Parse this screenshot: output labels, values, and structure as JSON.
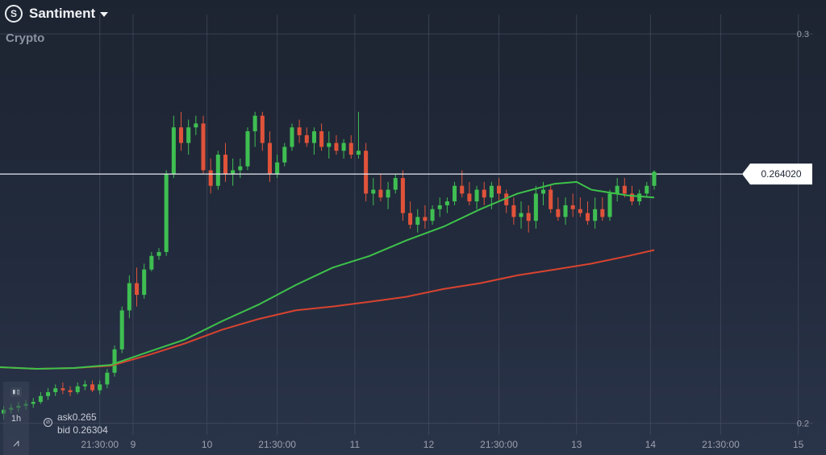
{
  "header": {
    "asset_name": "Santiment",
    "category": "Crypto",
    "logo_letter": "S"
  },
  "side_tools": {
    "chart_icon": "candles-icon",
    "timeframe": "1h",
    "draw_icon": "draw-icon"
  },
  "quote": {
    "ask_label": "ask",
    "ask_value": "0.265",
    "bid_label": "bid",
    "bid_value": "0.26304"
  },
  "colors": {
    "bull": "#3fbf52",
    "bear": "#e0533a",
    "ma_fast": "#3ec24a",
    "ma_slow": "#d9432f",
    "grid": "#4a5365"
  },
  "chart_data": {
    "type": "candlestick",
    "y_ticks": [
      "0.3",
      "0.2"
    ],
    "y_tick_values": [
      0.3,
      0.2
    ],
    "x_ticks": [
      "21:30:00",
      "9",
      "10",
      "21:30:00",
      "11",
      "12",
      "21:30:00",
      "13",
      "14",
      "21:30:00",
      "15"
    ],
    "x_tick_times": [
      3.5,
      8.0,
      18.0,
      27.5,
      38.0,
      48.0,
      57.5,
      68.0,
      78.0,
      87.5,
      98.0
    ],
    "current_price": "0.264020",
    "current_price_value": 0.26402,
    "x_range": [
      -10.0,
      100.0
    ],
    "y_range": [
      0.196,
      0.305
    ],
    "candle_times": [
      -9.5,
      -8.5,
      -7.5,
      -6.5,
      -5.5,
      -4.5,
      -3.5,
      -2.5,
      -1.5,
      -0.5,
      0.5,
      1.5,
      2.5,
      3.5,
      4.5,
      5.5,
      6.5,
      7.5,
      8.5,
      9.5,
      10.5,
      11.5,
      12.5,
      13.5,
      14.5,
      15.5,
      16.5,
      17.5,
      18.5,
      19.5,
      20.5,
      21.5,
      22.5,
      23.5,
      24.5,
      25.5,
      26.5,
      27.5,
      28.5,
      29.5,
      30.5,
      31.5,
      32.5,
      33.5,
      34.5,
      35.5,
      36.5,
      37.5,
      38.5,
      39.5,
      40.5,
      41.5,
      42.5,
      43.5,
      44.5,
      45.5,
      46.5,
      47.5,
      48.5,
      49.5,
      50.5,
      51.5,
      52.5,
      53.5,
      54.5,
      55.5,
      56.5,
      57.5,
      58.5,
      59.5,
      60.5,
      61.5,
      62.5,
      63.5,
      64.5,
      65.5,
      66.5,
      67.5,
      68.5,
      69.5,
      70.5,
      71.5,
      72.5,
      73.5,
      74.5,
      75.5,
      76.5,
      77.5,
      78.5
    ],
    "candles": [
      [
        0.2025,
        0.2045,
        0.201,
        0.2035
      ],
      [
        0.2035,
        0.205,
        0.2025,
        0.204
      ],
      [
        0.204,
        0.2055,
        0.203,
        0.2045
      ],
      [
        0.2045,
        0.206,
        0.2035,
        0.205
      ],
      [
        0.205,
        0.2065,
        0.204,
        0.2055
      ],
      [
        0.2055,
        0.208,
        0.205,
        0.207
      ],
      [
        0.207,
        0.209,
        0.206,
        0.208
      ],
      [
        0.208,
        0.21,
        0.207,
        0.209
      ],
      [
        0.209,
        0.2105,
        0.2075,
        0.2085
      ],
      [
        0.2085,
        0.2095,
        0.207,
        0.208
      ],
      [
        0.208,
        0.2105,
        0.2075,
        0.2095
      ],
      [
        0.2095,
        0.211,
        0.2085,
        0.21
      ],
      [
        0.21,
        0.211,
        0.208,
        0.2085
      ],
      [
        0.2085,
        0.211,
        0.2075,
        0.21
      ],
      [
        0.21,
        0.214,
        0.209,
        0.213
      ],
      [
        0.213,
        0.22,
        0.212,
        0.219
      ],
      [
        0.219,
        0.23,
        0.218,
        0.229
      ],
      [
        0.229,
        0.238,
        0.227,
        0.236
      ],
      [
        0.236,
        0.24,
        0.23,
        0.233
      ],
      [
        0.233,
        0.241,
        0.232,
        0.2395
      ],
      [
        0.2395,
        0.244,
        0.239,
        0.243
      ],
      [
        0.243,
        0.245,
        0.242,
        0.244
      ],
      [
        0.244,
        0.265,
        0.243,
        0.264
      ],
      [
        0.264,
        0.279,
        0.263,
        0.276
      ],
      [
        0.276,
        0.28,
        0.27,
        0.272
      ],
      [
        0.272,
        0.278,
        0.269,
        0.276
      ],
      [
        0.276,
        0.279,
        0.274,
        0.277
      ],
      [
        0.277,
        0.279,
        0.264,
        0.265
      ],
      [
        0.265,
        0.268,
        0.259,
        0.261
      ],
      [
        0.261,
        0.27,
        0.26,
        0.269
      ],
      [
        0.269,
        0.272,
        0.262,
        0.264
      ],
      [
        0.264,
        0.268,
        0.261,
        0.265
      ],
      [
        0.265,
        0.268,
        0.263,
        0.266
      ],
      [
        0.266,
        0.276,
        0.265,
        0.275
      ],
      [
        0.275,
        0.28,
        0.271,
        0.279
      ],
      [
        0.279,
        0.28,
        0.27,
        0.272
      ],
      [
        0.272,
        0.275,
        0.262,
        0.264
      ],
      [
        0.264,
        0.269,
        0.263,
        0.267
      ],
      [
        0.267,
        0.272,
        0.266,
        0.271
      ],
      [
        0.271,
        0.277,
        0.27,
        0.276
      ],
      [
        0.276,
        0.278,
        0.272,
        0.274
      ],
      [
        0.274,
        0.276,
        0.271,
        0.272
      ],
      [
        0.272,
        0.276,
        0.269,
        0.275
      ],
      [
        0.275,
        0.277,
        0.27,
        0.271
      ],
      [
        0.271,
        0.275,
        0.268,
        0.272
      ],
      [
        0.272,
        0.274,
        0.269,
        0.27
      ],
      [
        0.27,
        0.273,
        0.268,
        0.272
      ],
      [
        0.272,
        0.274,
        0.268,
        0.269
      ],
      [
        0.269,
        0.28,
        0.268,
        0.27
      ],
      [
        0.27,
        0.272,
        0.257,
        0.259
      ],
      [
        0.259,
        0.263,
        0.256,
        0.26
      ],
      [
        0.26,
        0.264,
        0.257,
        0.258
      ],
      [
        0.258,
        0.262,
        0.255,
        0.26
      ],
      [
        0.26,
        0.264,
        0.259,
        0.263
      ],
      [
        0.263,
        0.265,
        0.252,
        0.254
      ],
      [
        0.254,
        0.257,
        0.25,
        0.251
      ],
      [
        0.251,
        0.255,
        0.249,
        0.253
      ],
      [
        0.253,
        0.256,
        0.25,
        0.252
      ],
      [
        0.252,
        0.256,
        0.251,
        0.255
      ],
      [
        0.255,
        0.258,
        0.253,
        0.256
      ],
      [
        0.256,
        0.258,
        0.254,
        0.257
      ],
      [
        0.257,
        0.262,
        0.256,
        0.261
      ],
      [
        0.261,
        0.265,
        0.258,
        0.259
      ],
      [
        0.259,
        0.262,
        0.256,
        0.257
      ],
      [
        0.257,
        0.261,
        0.255,
        0.26
      ],
      [
        0.26,
        0.262,
        0.256,
        0.258
      ],
      [
        0.258,
        0.262,
        0.255,
        0.261
      ],
      [
        0.261,
        0.263,
        0.257,
        0.259
      ],
      [
        0.259,
        0.26,
        0.254,
        0.256
      ],
      [
        0.256,
        0.258,
        0.251,
        0.253
      ],
      [
        0.253,
        0.257,
        0.25,
        0.254
      ],
      [
        0.254,
        0.256,
        0.249,
        0.252
      ],
      [
        0.252,
        0.261,
        0.25,
        0.259
      ],
      [
        0.259,
        0.262,
        0.256,
        0.26
      ],
      [
        0.26,
        0.261,
        0.254,
        0.255
      ],
      [
        0.255,
        0.258,
        0.252,
        0.253
      ],
      [
        0.253,
        0.258,
        0.251,
        0.256
      ],
      [
        0.256,
        0.259,
        0.253,
        0.255
      ],
      [
        0.255,
        0.258,
        0.253,
        0.254
      ],
      [
        0.254,
        0.257,
        0.251,
        0.252
      ],
      [
        0.252,
        0.258,
        0.25,
        0.255
      ],
      [
        0.255,
        0.258,
        0.252,
        0.253
      ],
      [
        0.253,
        0.26,
        0.252,
        0.259
      ],
      [
        0.259,
        0.263,
        0.257,
        0.261
      ],
      [
        0.261,
        0.263,
        0.258,
        0.259
      ],
      [
        0.259,
        0.261,
        0.256,
        0.257
      ],
      [
        0.257,
        0.26,
        0.256,
        0.259
      ],
      [
        0.259,
        0.262,
        0.258,
        0.261
      ],
      [
        0.261,
        0.265,
        0.26,
        0.264
      ]
    ],
    "ma_fast": [
      [
        -10,
        0.2144
      ],
      [
        -5,
        0.214
      ],
      [
        0,
        0.2142
      ],
      [
        5,
        0.215
      ],
      [
        10,
        0.2183
      ],
      [
        15,
        0.2215
      ],
      [
        20,
        0.2262
      ],
      [
        25,
        0.2305
      ],
      [
        30,
        0.2355
      ],
      [
        35,
        0.24
      ],
      [
        40,
        0.243
      ],
      [
        45,
        0.247
      ],
      [
        50,
        0.2505
      ],
      [
        55,
        0.255
      ],
      [
        60,
        0.259
      ],
      [
        65,
        0.2615
      ],
      [
        68,
        0.262
      ],
      [
        70,
        0.26
      ],
      [
        75,
        0.2585
      ],
      [
        78.5,
        0.258
      ]
    ],
    "ma_slow": [
      [
        -10,
        0.2144
      ],
      [
        -5,
        0.214
      ],
      [
        0,
        0.2142
      ],
      [
        5,
        0.2148
      ],
      [
        10,
        0.2175
      ],
      [
        15,
        0.2205
      ],
      [
        20,
        0.224
      ],
      [
        25,
        0.2268
      ],
      [
        30,
        0.229
      ],
      [
        35,
        0.23
      ],
      [
        40,
        0.2312
      ],
      [
        45,
        0.2325
      ],
      [
        50,
        0.2345
      ],
      [
        55,
        0.236
      ],
      [
        60,
        0.238
      ],
      [
        65,
        0.2395
      ],
      [
        70,
        0.241
      ],
      [
        75,
        0.243
      ],
      [
        78.5,
        0.2445
      ]
    ]
  }
}
